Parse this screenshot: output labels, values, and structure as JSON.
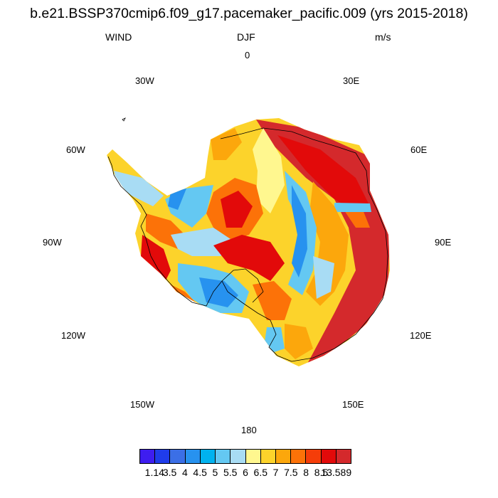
{
  "header": {
    "title": "b.e21.BSSP370cmip6.f09_g17.pacemaker_pacific.009 (yrs 2015-2018)",
    "left": "WIND",
    "center": "DJF",
    "right": "m/s"
  },
  "map": {
    "projection": "south-polar-stereographic",
    "region": "Antarctica",
    "field": "WIND",
    "longitude_labels": {
      "deg0": "0",
      "e30": "30E",
      "e60": "60E",
      "e90": "90E",
      "e120": "120E",
      "e150": "150E",
      "deg180": "180",
      "w150": "150W",
      "w120": "120W",
      "w90": "90W",
      "w60": "60W",
      "w30": "30W"
    },
    "colors": {
      "coast": "#000000",
      "background": "#ffffff"
    }
  },
  "colorbar": {
    "labels": [
      "1.14",
      "3.5",
      "4",
      "4.5",
      "5",
      "5.5",
      "6",
      "6.5",
      "7",
      "7.5",
      "8",
      "8.5",
      "13.589"
    ],
    "colors": [
      "#3e1df0",
      "#1f3cea",
      "#3b6fe6",
      "#2792ef",
      "#00b2ef",
      "#64c8f2",
      "#a8dcf4",
      "#fff78f",
      "#fcd32b",
      "#fca70c",
      "#fc7208",
      "#f53d09",
      "#e20a0a",
      "#d4292c"
    ]
  }
}
